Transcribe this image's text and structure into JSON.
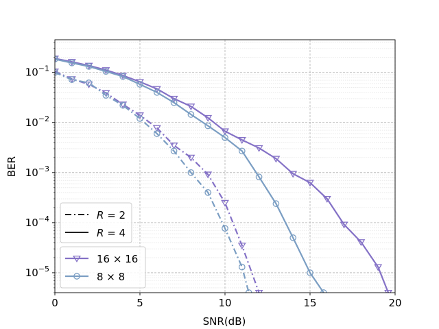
{
  "chart_data": {
    "type": "line",
    "xlabel": "SNR(dB)",
    "ylabel": "BER",
    "xlim": [
      0,
      20
    ],
    "ylim": [
      4e-06,
      0.45
    ],
    "yscale": "log",
    "grid": true,
    "xticks": [
      {
        "value": 0,
        "label": "0"
      },
      {
        "value": 5,
        "label": "5"
      },
      {
        "value": 10,
        "label": "10"
      },
      {
        "value": 15,
        "label": "15"
      },
      {
        "value": 20,
        "label": "20"
      }
    ],
    "yticks": [
      {
        "exp": -1,
        "base": "10",
        "sup": "−1"
      },
      {
        "exp": -2,
        "base": "10",
        "sup": "−2"
      },
      {
        "exp": -3,
        "base": "10",
        "sup": "−3"
      },
      {
        "exp": -4,
        "base": "10",
        "sup": "−4"
      },
      {
        "exp": -5,
        "base": "10",
        "sup": "−5"
      }
    ],
    "legend": {
      "placement": "lower-left",
      "line_styles": [
        {
          "label_var": "R",
          "label_eq": " = 2",
          "dash": "dashdot"
        },
        {
          "label_var": "R",
          "label_eq": " = 4",
          "dash": "solid"
        }
      ],
      "markers": [
        {
          "label": "16 × 16",
          "marker": "triangle-down",
          "color": "#8471c6"
        },
        {
          "label": "8 × 8",
          "marker": "circle",
          "color": "#7b9ec3"
        }
      ]
    },
    "series": [
      {
        "size": "16 × 16",
        "rate": "R = 4",
        "color": "#8471c6",
        "marker": "triangle-down",
        "dash": "solid",
        "x": [
          0,
          1,
          2,
          3,
          4,
          5,
          6,
          7,
          8,
          9,
          10,
          11,
          12,
          13,
          14,
          15,
          16,
          17,
          18,
          19,
          19.6
        ],
        "y": [
          0.19,
          0.163,
          0.137,
          0.112,
          0.087,
          0.065,
          0.047,
          0.03,
          0.021,
          0.0124,
          0.0067,
          0.0045,
          0.0031,
          0.0019,
          0.00095,
          0.00063,
          0.0003,
          9.2e-05,
          4.1e-05,
          1.3e-05,
          4e-06
        ]
      },
      {
        "size": "8 × 8",
        "rate": "R = 4",
        "color": "#7b9ec3",
        "marker": "circle",
        "dash": "solid",
        "x": [
          0,
          1,
          2,
          3,
          4,
          5,
          6,
          7,
          8,
          9,
          10,
          11,
          12,
          13,
          14,
          15,
          15.8
        ],
        "y": [
          0.185,
          0.155,
          0.132,
          0.105,
          0.083,
          0.058,
          0.04,
          0.025,
          0.0145,
          0.0086,
          0.005,
          0.0027,
          0.00082,
          0.00024,
          5e-05,
          1e-05,
          4e-06
        ]
      },
      {
        "size": "16 × 16",
        "rate": "R = 2",
        "color": "#8471c6",
        "marker": "triangle-down",
        "dash": "dashdot",
        "x": [
          0,
          1,
          2,
          3,
          4,
          5,
          6,
          7,
          8,
          9,
          10,
          11,
          12
        ],
        "y": [
          0.105,
          0.074,
          0.058,
          0.039,
          0.023,
          0.014,
          0.0078,
          0.0035,
          0.002,
          0.00092,
          0.00025,
          3.5e-05,
          4e-06
        ]
      },
      {
        "size": "8 × 8",
        "rate": "R = 2",
        "color": "#7b9ec3",
        "marker": "circle",
        "dash": "dashdot",
        "x": [
          0,
          1,
          2,
          3,
          4,
          5,
          6,
          7,
          8,
          9,
          10,
          11,
          11.4
        ],
        "y": [
          0.1,
          0.072,
          0.062,
          0.035,
          0.022,
          0.012,
          0.006,
          0.0027,
          0.001,
          0.0004,
          7.7e-05,
          1.3e-05,
          4e-06
        ]
      }
    ]
  }
}
